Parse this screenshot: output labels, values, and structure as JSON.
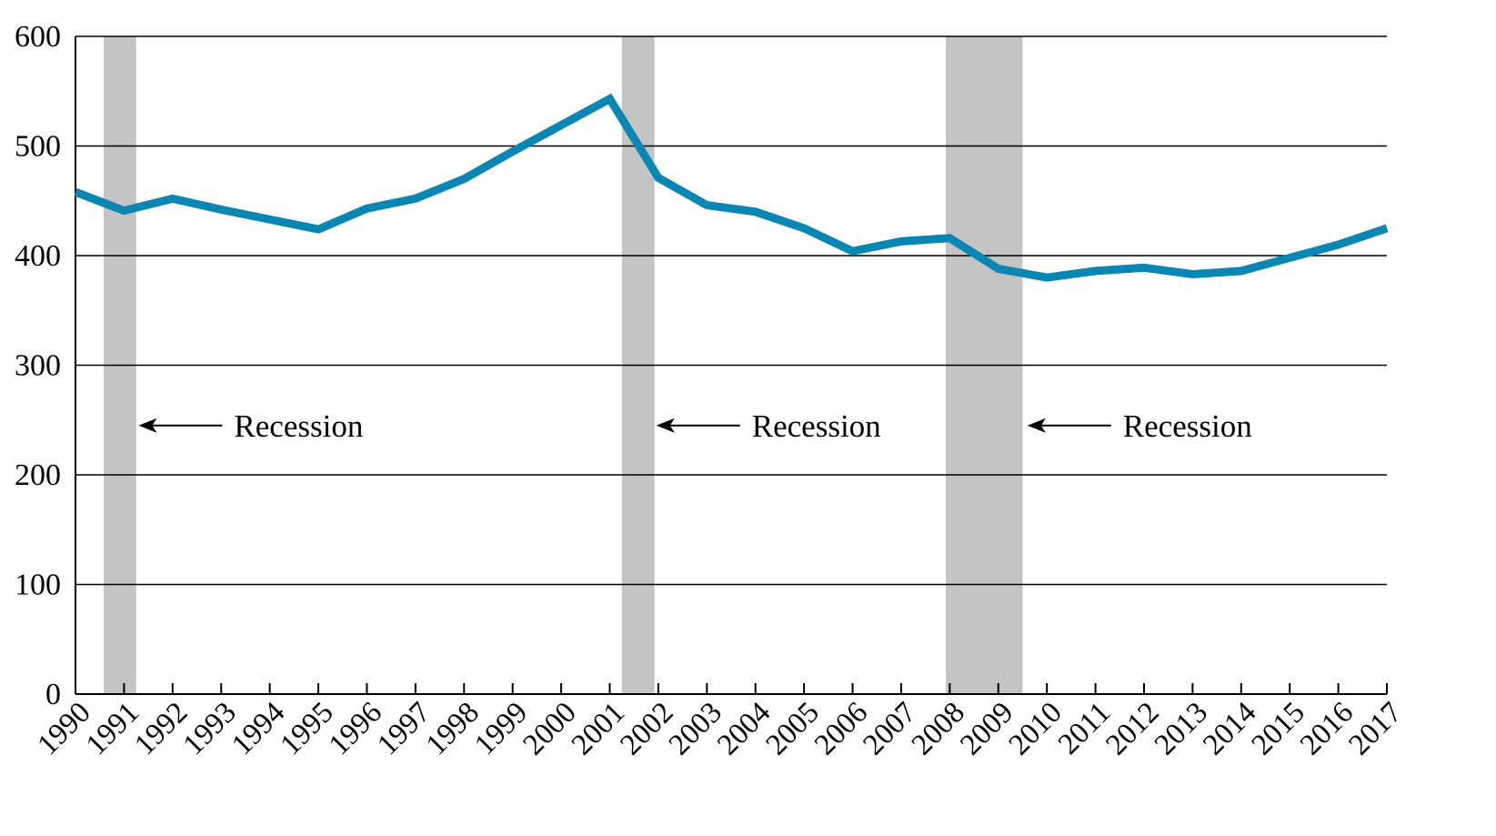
{
  "chart_data": {
    "type": "line",
    "title": "",
    "xlabel": "",
    "ylabel": "",
    "x": [
      "1990",
      "1991",
      "1992",
      "1993",
      "1994",
      "1995",
      "1996",
      "1997",
      "1998",
      "1999",
      "2000",
      "2001",
      "2002",
      "2003",
      "2004",
      "2005",
      "2006",
      "2007",
      "2008",
      "2009",
      "2010",
      "2011",
      "2012",
      "2013",
      "2014",
      "2015",
      "2016",
      "2017"
    ],
    "series": [
      {
        "color": "#0a86b3",
        "values": [
          458,
          441,
          452,
          442,
          433,
          424,
          443,
          452,
          470,
          495,
          519,
          543,
          471,
          446,
          440,
          425,
          404,
          413,
          416,
          388,
          380,
          386,
          389,
          383,
          386,
          398,
          410,
          425
        ]
      }
    ],
    "ylim": [
      0,
      600
    ],
    "yticks": [
      "0",
      "100",
      "200",
      "300",
      "400",
      "500",
      "600"
    ],
    "grid": true,
    "legend": "none",
    "recessions": [
      {
        "start": 1990.58,
        "end": 1991.25
      },
      {
        "start": 2001.25,
        "end": 2001.92
      },
      {
        "start": 2007.92,
        "end": 2009.5
      }
    ],
    "annotations": [
      {
        "text": "Recession",
        "x": 1991.3,
        "y": 245
      },
      {
        "text": "Recession",
        "x": 2001.96,
        "y": 245
      },
      {
        "text": "Recession",
        "x": 2009.6,
        "y": 245
      }
    ],
    "shade_color": "#c4c4c4"
  }
}
